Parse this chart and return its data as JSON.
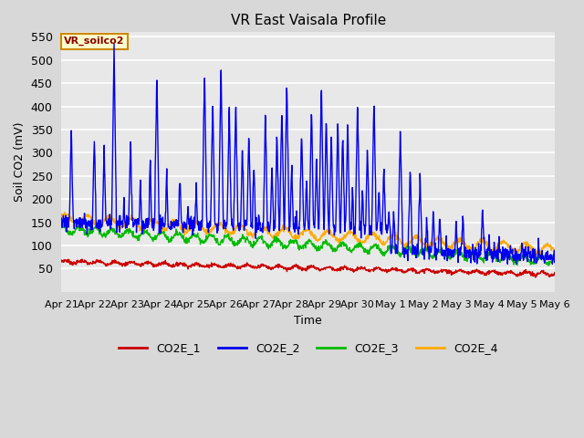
{
  "title": "VR East Vaisala Profile",
  "xlabel": "Time",
  "ylabel": "Soil CO2 (mV)",
  "label_box": "VR_soilco2",
  "ylim": [
    0,
    560
  ],
  "yticks": [
    50,
    100,
    150,
    200,
    250,
    300,
    350,
    400,
    450,
    500,
    550
  ],
  "xtick_labels": [
    "Apr 21",
    "Apr 22",
    "Apr 23",
    "Apr 24",
    "Apr 25",
    "Apr 26",
    "Apr 27",
    "Apr 28",
    "Apr 29",
    "Apr 30",
    "May 1",
    "May 2",
    "May 3",
    "May 4",
    "May 5",
    "May 6"
  ],
  "series": {
    "CO2E_1": {
      "color": "#cc0000",
      "lw": 1.0
    },
    "CO2E_2": {
      "color": "#0000ee",
      "lw": 1.0
    },
    "CO2E_3": {
      "color": "#00bb00",
      "lw": 1.0
    },
    "CO2E_4": {
      "color": "#ffaa00",
      "lw": 1.0
    }
  },
  "fig_bg": "#d8d8d8",
  "plot_bg": "#e8e8e8",
  "grid_color": "#ffffff",
  "n_points": 1500
}
